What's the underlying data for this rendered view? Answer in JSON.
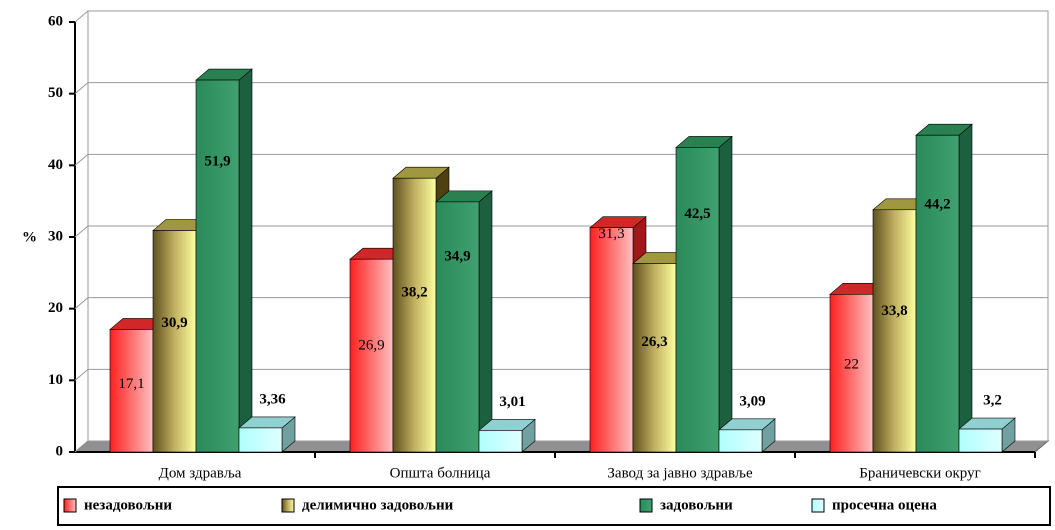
{
  "chart_data": {
    "type": "bar3d",
    "y_label": "%",
    "categories": [
      "Дом здравља",
      "Општа болница",
      "Завод за јавно здравље",
      "Браничевски округ"
    ],
    "series": [
      {
        "name": "незадовољни",
        "color": "#ff3b3b",
        "values": [
          17.1,
          26.9,
          31.3,
          22
        ],
        "value_labels": [
          "17,1",
          "26,9",
          "31,3",
          "22"
        ]
      },
      {
        "name": "делимично задовољни",
        "color": "#c8c060",
        "values": [
          30.9,
          38.2,
          26.3,
          33.8
        ],
        "value_labels": [
          "30,9",
          "38,2",
          "26,3",
          "33,8"
        ]
      },
      {
        "name": "задовољни",
        "color": "#3c9c6c",
        "values": [
          51.9,
          34.9,
          42.5,
          44.2
        ],
        "value_labels": [
          "51,9",
          "34,9",
          "42,5",
          "44,2"
        ]
      },
      {
        "name": "просечна оцена",
        "color": "#c8ffff",
        "values": [
          3.36,
          3.01,
          3.09,
          3.2
        ],
        "value_labels": [
          "3,36",
          "3,01",
          "3,09",
          "3,2"
        ]
      }
    ],
    "ylim": [
      0,
      60
    ],
    "yticks": [
      0,
      10,
      20,
      30,
      40,
      50,
      60
    ],
    "grid": true
  }
}
